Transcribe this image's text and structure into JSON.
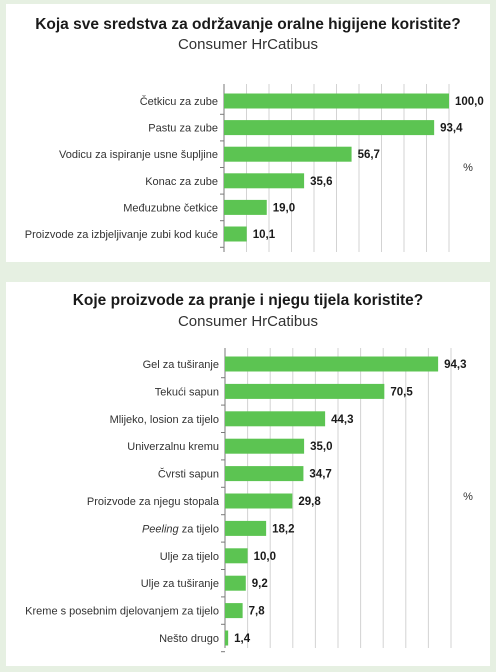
{
  "colors": {
    "bar": "#5cc452",
    "grid": "#d3d3d3",
    "axis": "#7a7a7a",
    "background": "#e6f0e2"
  },
  "chart_data": [
    {
      "type": "bar",
      "orientation": "horizontal",
      "title": "Koja sve sredstva za održavanje oralne higijene koristite?",
      "subtitle": "Consumer HrCatibus",
      "unit": "%",
      "xlim": [
        0,
        100
      ],
      "grid": true,
      "categories": [
        "Četkicu za zube",
        "Pastu za zube",
        "Vodicu za ispiranje usne šupljine",
        "Konac za zube",
        "Međuzubne četkice",
        "Proizvode za izbjeljivanje zubi kod kuće"
      ],
      "values": [
        100.0,
        93.4,
        56.7,
        35.6,
        19.0,
        10.1
      ],
      "value_labels": [
        "100,0",
        "93,4",
        "56,7",
        "35,6",
        "19,0",
        "10,1"
      ]
    },
    {
      "type": "bar",
      "orientation": "horizontal",
      "title": "Koje proizvode za pranje i njegu tijela koristite?",
      "subtitle": "Consumer HrCatibus",
      "unit": "%",
      "xlim": [
        0,
        100
      ],
      "grid": true,
      "categories": [
        "Gel za tuširanje",
        "Tekući sapun",
        "Mlijeko, losion za tijelo",
        "Univerzalnu kremu",
        "Čvrsti sapun",
        "Proizvode za njegu stopala",
        "Peeling za tijelo",
        "Ulje za tijelo",
        "Ulje za tuširanje",
        "Kreme s posebnim djelovanjem za tijelo",
        "Nešto drugo"
      ],
      "values": [
        94.3,
        70.5,
        44.3,
        35.0,
        34.7,
        29.8,
        18.2,
        10.0,
        9.2,
        7.8,
        1.4
      ],
      "value_labels": [
        "94,3",
        "70,5",
        "44,3",
        "35,0",
        "34,7",
        "29,8",
        "18,2",
        "10,0",
        "9,2",
        "7,8",
        "1,4"
      ],
      "italic_label_prefix": {
        "index": 6,
        "text": "Peeling"
      }
    }
  ]
}
